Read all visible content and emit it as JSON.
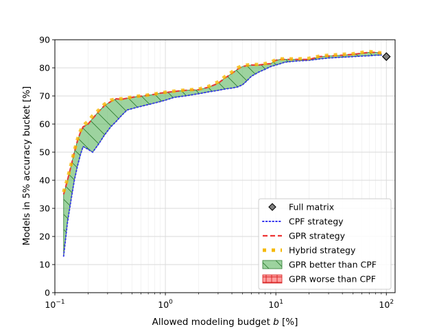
{
  "chart_data": {
    "type": "line",
    "title": "",
    "xlabel": "Allowed modeling budget b [%]",
    "ylabel": "Models in 5% accuracy bucket [%]",
    "x_scale": "log",
    "xlim": [
      0.1,
      120
    ],
    "ylim": [
      0,
      90
    ],
    "x_ticks": [
      0.1,
      1,
      10,
      100
    ],
    "x_tick_labels": [
      {
        "base": "10",
        "exp": "−1"
      },
      {
        "base": "10",
        "exp": "0"
      },
      {
        "base": "10",
        "exp": "1"
      },
      {
        "base": "10",
        "exp": "2"
      }
    ],
    "y_ticks": [
      0,
      10,
      20,
      30,
      40,
      50,
      60,
      70,
      80,
      90
    ],
    "y_tick_labels": [
      "0",
      "10",
      "20",
      "30",
      "40",
      "50",
      "60",
      "70",
      "80",
      "90"
    ],
    "grid": true,
    "legend_position": "lower-right",
    "x": [
      0.12,
      0.13,
      0.14,
      0.15,
      0.16,
      0.17,
      0.18,
      0.2,
      0.22,
      0.25,
      0.28,
      0.32,
      0.36,
      0.4,
      0.45,
      0.5,
      0.56,
      0.63,
      0.71,
      0.8,
      0.9,
      1.0,
      1.2,
      1.5,
      2.0,
      2.5,
      3.0,
      3.5,
      4.0,
      4.5,
      5.0,
      5.5,
      6.0,
      7.0,
      8.0,
      9.0,
      10.0,
      11.0,
      12.0,
      14.0,
      16.0,
      20.0,
      25.0,
      30.0,
      40.0,
      50.0,
      60.0,
      70.0,
      80.0,
      90.0
    ],
    "series": [
      {
        "name": "CPF strategy",
        "color": "#3333ee",
        "style": "dotted",
        "values": [
          13.0,
          25.0,
          33.0,
          40.0,
          45.0,
          49.0,
          52.0,
          51.0,
          50.0,
          53.0,
          56.0,
          59.0,
          61.0,
          63.0,
          65.0,
          65.5,
          66.0,
          66.5,
          67.0,
          67.5,
          68.0,
          68.5,
          69.5,
          70.0,
          70.8,
          71.5,
          72.0,
          72.5,
          72.8,
          73.2,
          74.0,
          75.5,
          77.0,
          78.5,
          79.5,
          80.5,
          81.0,
          81.5,
          82.0,
          82.3,
          82.5,
          82.7,
          83.2,
          83.5,
          83.8,
          84.0,
          84.2,
          84.3,
          84.5,
          84.5
        ]
      },
      {
        "name": "GPR strategy",
        "color": "#ee3333",
        "style": "dashed",
        "values": [
          35.0,
          40.0,
          45.0,
          50.0,
          54.0,
          57.0,
          59.0,
          60.0,
          62.0,
          64.5,
          66.5,
          68.0,
          69.0,
          68.8,
          69.2,
          69.5,
          69.8,
          70.0,
          70.3,
          70.6,
          71.0,
          71.2,
          71.6,
          72.0,
          72.2,
          73.2,
          74.5,
          76.5,
          78.0,
          79.5,
          80.5,
          80.8,
          81.0,
          81.0,
          81.3,
          81.5,
          82.7,
          83.0,
          83.0,
          83.0,
          83.0,
          83.0,
          84.0,
          84.2,
          84.5,
          84.8,
          85.2,
          85.5,
          85.5,
          85.2
        ]
      },
      {
        "name": "Hybrid strategy",
        "color": "#f5b800",
        "style": "dotted-thick",
        "values": [
          35.8,
          40.5,
          45.5,
          50.5,
          54.5,
          57.5,
          59.5,
          61.0,
          63.0,
          65.0,
          67.0,
          68.5,
          69.0,
          69.0,
          69.3,
          69.6,
          69.9,
          70.1,
          70.4,
          70.7,
          71.1,
          71.3,
          71.7,
          72.1,
          72.4,
          73.5,
          75.0,
          77.0,
          78.5,
          80.0,
          80.8,
          81.0,
          81.2,
          81.2,
          81.5,
          82.0,
          82.9,
          83.2,
          83.2,
          83.2,
          83.2,
          83.4,
          84.2,
          84.5,
          84.8,
          85.0,
          85.5,
          85.8,
          85.6,
          85.3
        ]
      }
    ],
    "fill_between": [
      {
        "name": "GPR better than CPF",
        "color": "#4caf50",
        "hatch": "\\\\"
      },
      {
        "name": "GPR worse than CPF",
        "color": "#ff4d4d",
        "hatch": "++"
      }
    ],
    "markers": [
      {
        "name": "Full matrix",
        "x": 100,
        "y": 84.0,
        "color": "#808080",
        "shape": "diamond"
      }
    ]
  }
}
